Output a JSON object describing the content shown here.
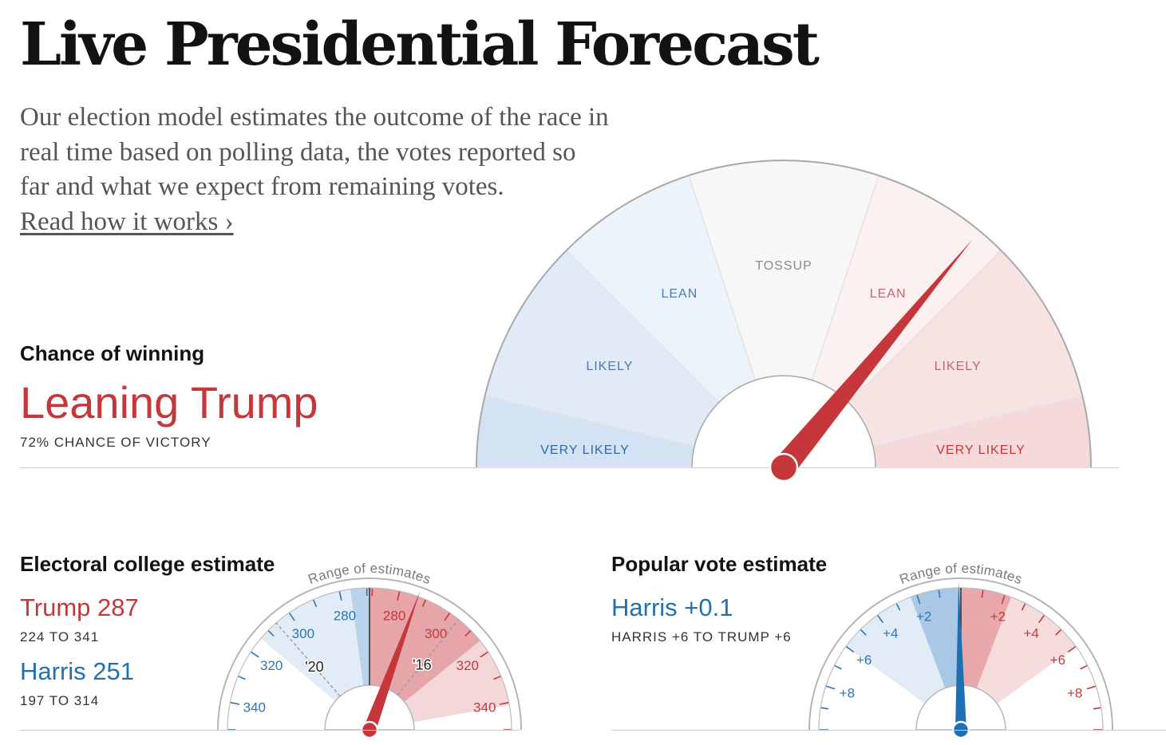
{
  "header": {
    "title": "Live Presidential Forecast",
    "intro_lines": [
      "Our election model estimates the outcome of the race in",
      "real time based on polling data, the votes reported so",
      "far and what we expect from remaining votes."
    ],
    "read_more": "Read how it works ›"
  },
  "chance": {
    "label": "Chance of winning",
    "headline": "Leaning Trump",
    "subtext": "72% CHANCE OF VICTORY"
  },
  "electoral": {
    "title": "Electoral college estimate",
    "trump": {
      "label": "Trump 287",
      "range": "224 TO 341"
    },
    "harris": {
      "label": "Harris 251",
      "range": "197 TO 314"
    }
  },
  "popular": {
    "title": "Popular vote estimate",
    "headline": "Harris +0.1",
    "range": "HARRIS +6 TO TRUMP +6"
  },
  "colors": {
    "red": "#c5373b",
    "blue": "#2170b0",
    "red_very_likely": "#f6d9da",
    "red_likely": "#f8e3e3",
    "red_lean": "#fcf0f0",
    "tossup": "#f7f7f7",
    "blue_lean": "#edf3fa",
    "blue_likely": "#e0ebf7",
    "blue_very_likely": "#d3e3f3"
  },
  "chart_data": [
    {
      "type": "gauge",
      "title": "Chance of winning",
      "segments": [
        {
          "label": "VERY LIKELY",
          "side": "harris",
          "range": [
            0,
            7.5
          ]
        },
        {
          "label": "LIKELY",
          "side": "harris",
          "range": [
            7.5,
            25
          ]
        },
        {
          "label": "LEAN",
          "side": "harris",
          "range": [
            25,
            40
          ]
        },
        {
          "label": "TOSSUP",
          "side": "neutral",
          "range": [
            40,
            60
          ]
        },
        {
          "label": "LEAN",
          "side": "trump",
          "range": [
            60,
            75
          ]
        },
        {
          "label": "LIKELY",
          "side": "trump",
          "range": [
            75,
            92.5
          ]
        },
        {
          "label": "VERY LIKELY",
          "side": "trump",
          "range": [
            92.5,
            100
          ]
        }
      ],
      "needle_trump_pct": 72,
      "needle_label": "72% CHANCE OF VICTORY"
    },
    {
      "type": "gauge",
      "title": "Electoral college estimate",
      "arc_label": "Range of estimates",
      "domain": [
        350,
        350
      ],
      "tick_labels_harris": [
        "280",
        "300",
        "320",
        "340"
      ],
      "tick_labels_trump": [
        "280",
        "300",
        "320",
        "340"
      ],
      "trump_estimate": 287,
      "trump_range": [
        224,
        341
      ],
      "harris_estimate": 251,
      "harris_range": [
        197,
        314
      ],
      "reference_markers": [
        {
          "label": "'20",
          "trump_ev": 232
        },
        {
          "label": "'16",
          "trump_ev": 304
        }
      ]
    },
    {
      "type": "gauge",
      "title": "Popular vote estimate",
      "arc_label": "Range of estimates",
      "domain": [
        -10,
        10
      ],
      "tick_labels_harris": [
        "+2",
        "+4",
        "+6",
        "+8"
      ],
      "tick_labels_trump": [
        "+2",
        "+4",
        "+6",
        "+8"
      ],
      "estimate": "Harris +0.1",
      "estimate_value": -0.1,
      "range": [
        -6,
        6
      ]
    }
  ]
}
